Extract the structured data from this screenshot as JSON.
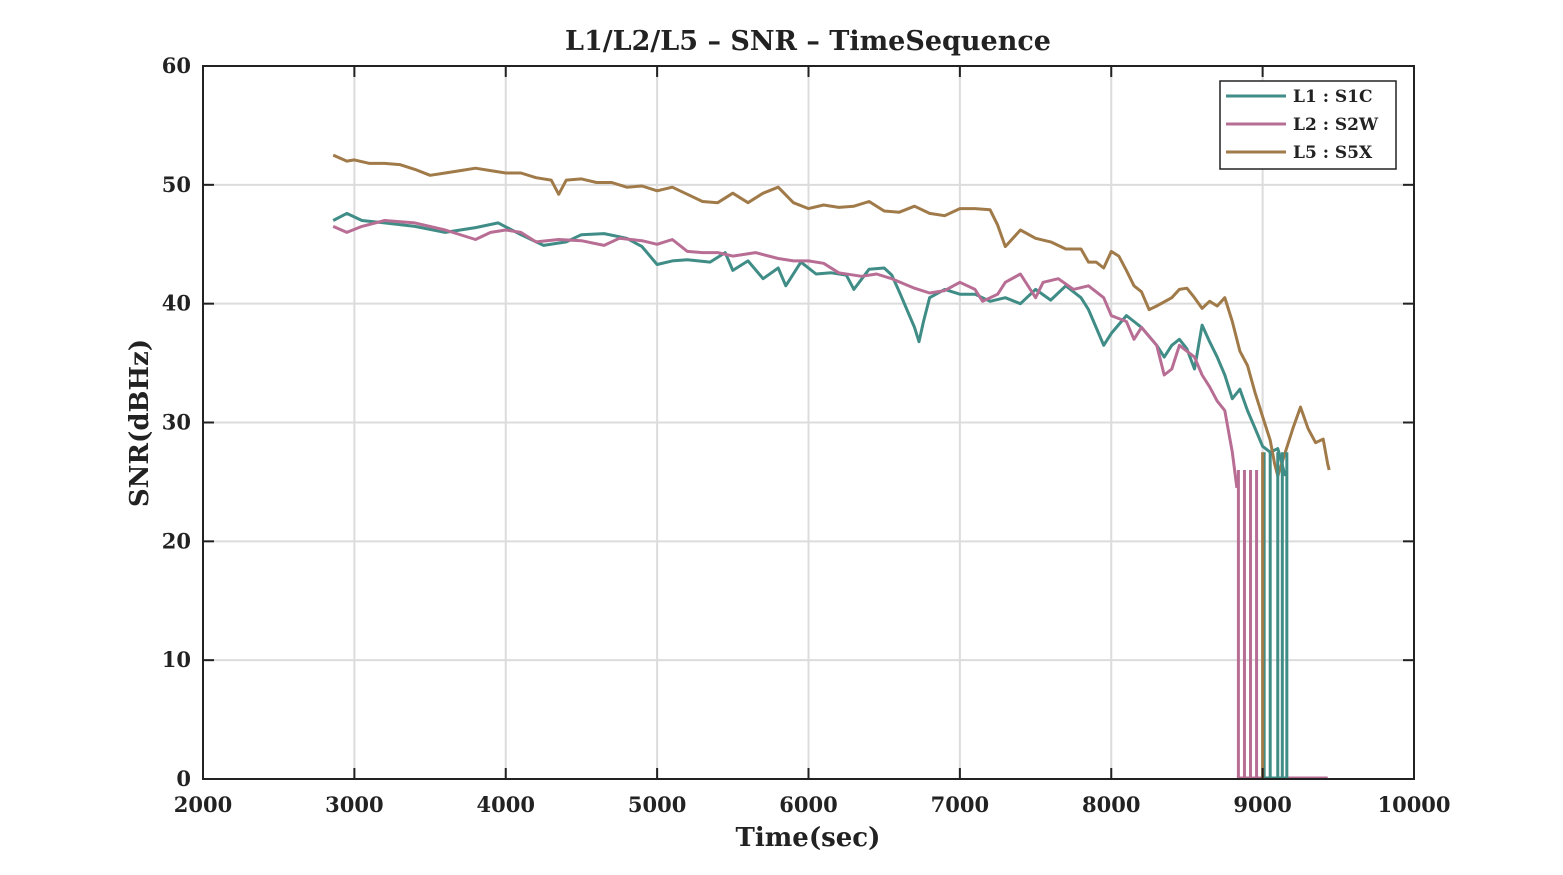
{
  "chart_data": {
    "type": "line",
    "title": "L1/L2/L5 – SNR – TimeSequence",
    "xlabel": "Time(sec)",
    "ylabel": "SNR(dBHz)",
    "xlim": [
      2000,
      10000
    ],
    "ylim": [
      0,
      60
    ],
    "xticks": [
      2000,
      3000,
      4000,
      5000,
      6000,
      7000,
      8000,
      9000,
      10000
    ],
    "yticks": [
      0,
      10,
      20,
      30,
      40,
      50,
      60
    ],
    "grid": true,
    "legend_position": "top-right",
    "series": [
      {
        "name": "L1 : S1C",
        "color": "#3f8d86",
        "points": [
          [
            2860,
            47
          ],
          [
            2950,
            47.6
          ],
          [
            3050,
            47
          ],
          [
            3200,
            46.8
          ],
          [
            3400,
            46.5
          ],
          [
            3600,
            46
          ],
          [
            3800,
            46.4
          ],
          [
            3950,
            46.8
          ],
          [
            4100,
            45.8
          ],
          [
            4250,
            44.9
          ],
          [
            4400,
            45.2
          ],
          [
            4500,
            45.8
          ],
          [
            4650,
            45.9
          ],
          [
            4800,
            45.5
          ],
          [
            4900,
            44.8
          ],
          [
            5000,
            43.3
          ],
          [
            5100,
            43.6
          ],
          [
            5200,
            43.7
          ],
          [
            5350,
            43.5
          ],
          [
            5450,
            44.3
          ],
          [
            5500,
            42.8
          ],
          [
            5600,
            43.6
          ],
          [
            5700,
            42.1
          ],
          [
            5800,
            43
          ],
          [
            5850,
            41.5
          ],
          [
            5950,
            43.5
          ],
          [
            6050,
            42.5
          ],
          [
            6150,
            42.6
          ],
          [
            6250,
            42.4
          ],
          [
            6300,
            41.2
          ],
          [
            6400,
            42.9
          ],
          [
            6500,
            43
          ],
          [
            6550,
            42.4
          ],
          [
            6600,
            41
          ],
          [
            6650,
            39.5
          ],
          [
            6700,
            38
          ],
          [
            6730,
            36.8
          ],
          [
            6760,
            38.5
          ],
          [
            6800,
            40.5
          ],
          [
            6900,
            41.2
          ],
          [
            7000,
            40.8
          ],
          [
            7100,
            40.8
          ],
          [
            7200,
            40.2
          ],
          [
            7300,
            40.5
          ],
          [
            7400,
            40
          ],
          [
            7500,
            41.2
          ],
          [
            7600,
            40.3
          ],
          [
            7700,
            41.5
          ],
          [
            7800,
            40.5
          ],
          [
            7850,
            39.5
          ],
          [
            7900,
            38
          ],
          [
            7950,
            36.5
          ],
          [
            8000,
            37.5
          ],
          [
            8100,
            39
          ],
          [
            8150,
            38.5
          ],
          [
            8200,
            38
          ],
          [
            8300,
            36.5
          ],
          [
            8350,
            35.5
          ],
          [
            8400,
            36.5
          ],
          [
            8450,
            37
          ],
          [
            8500,
            36.2
          ],
          [
            8550,
            34.5
          ],
          [
            8600,
            38.2
          ],
          [
            8650,
            36.8
          ],
          [
            8700,
            35.5
          ],
          [
            8750,
            34
          ],
          [
            8800,
            32
          ],
          [
            8850,
            32.8
          ],
          [
            8900,
            31
          ],
          [
            8950,
            29.5
          ],
          [
            9000,
            28
          ],
          [
            9050,
            27.5
          ],
          [
            9100,
            27.8
          ],
          [
            9150,
            25.5
          ]
        ]
      },
      {
        "name": "L2 : S2W",
        "color": "#b86e94",
        "points": [
          [
            2860,
            46.5
          ],
          [
            2950,
            46
          ],
          [
            3050,
            46.5
          ],
          [
            3200,
            47
          ],
          [
            3400,
            46.8
          ],
          [
            3600,
            46.2
          ],
          [
            3800,
            45.4
          ],
          [
            3900,
            46
          ],
          [
            4000,
            46.2
          ],
          [
            4100,
            46
          ],
          [
            4200,
            45.2
          ],
          [
            4350,
            45.4
          ],
          [
            4500,
            45.3
          ],
          [
            4650,
            44.9
          ],
          [
            4750,
            45.5
          ],
          [
            4900,
            45.3
          ],
          [
            5000,
            45
          ],
          [
            5100,
            45.4
          ],
          [
            5200,
            44.4
          ],
          [
            5300,
            44.3
          ],
          [
            5400,
            44.3
          ],
          [
            5500,
            44
          ],
          [
            5650,
            44.3
          ],
          [
            5800,
            43.8
          ],
          [
            5900,
            43.6
          ],
          [
            6000,
            43.6
          ],
          [
            6100,
            43.4
          ],
          [
            6200,
            42.6
          ],
          [
            6350,
            42.3
          ],
          [
            6450,
            42.5
          ],
          [
            6550,
            42.1
          ],
          [
            6700,
            41.3
          ],
          [
            6800,
            40.9
          ],
          [
            6900,
            41.1
          ],
          [
            7000,
            41.8
          ],
          [
            7100,
            41.2
          ],
          [
            7150,
            40.2
          ],
          [
            7250,
            40.8
          ],
          [
            7300,
            41.8
          ],
          [
            7400,
            42.5
          ],
          [
            7500,
            40.5
          ],
          [
            7550,
            41.8
          ],
          [
            7650,
            42.1
          ],
          [
            7750,
            41.2
          ],
          [
            7850,
            41.5
          ],
          [
            7950,
            40.5
          ],
          [
            8000,
            39
          ],
          [
            8100,
            38.5
          ],
          [
            8150,
            37
          ],
          [
            8200,
            38
          ],
          [
            8300,
            36.5
          ],
          [
            8350,
            34
          ],
          [
            8400,
            34.5
          ],
          [
            8450,
            36.5
          ],
          [
            8500,
            36
          ],
          [
            8550,
            35.5
          ],
          [
            8600,
            34
          ],
          [
            8650,
            33
          ],
          [
            8700,
            31.8
          ],
          [
            8750,
            31
          ],
          [
            8800,
            27.5
          ],
          [
            8830,
            24.5
          ]
        ]
      },
      {
        "name": "L5 : S5X",
        "color": "#a07a48",
        "points": [
          [
            2860,
            52.5
          ],
          [
            2950,
            52
          ],
          [
            3000,
            52.1
          ],
          [
            3100,
            51.8
          ],
          [
            3200,
            51.8
          ],
          [
            3300,
            51.7
          ],
          [
            3400,
            51.3
          ],
          [
            3500,
            50.8
          ],
          [
            3600,
            51
          ],
          [
            3700,
            51.2
          ],
          [
            3800,
            51.4
          ],
          [
            3900,
            51.2
          ],
          [
            4000,
            51
          ],
          [
            4100,
            51
          ],
          [
            4200,
            50.6
          ],
          [
            4300,
            50.4
          ],
          [
            4350,
            49.2
          ],
          [
            4400,
            50.4
          ],
          [
            4500,
            50.5
          ],
          [
            4600,
            50.2
          ],
          [
            4700,
            50.2
          ],
          [
            4800,
            49.8
          ],
          [
            4900,
            49.9
          ],
          [
            5000,
            49.5
          ],
          [
            5100,
            49.8
          ],
          [
            5200,
            49.2
          ],
          [
            5300,
            48.6
          ],
          [
            5400,
            48.5
          ],
          [
            5500,
            49.3
          ],
          [
            5600,
            48.5
          ],
          [
            5700,
            49.3
          ],
          [
            5800,
            49.8
          ],
          [
            5900,
            48.5
          ],
          [
            6000,
            48
          ],
          [
            6100,
            48.3
          ],
          [
            6200,
            48.1
          ],
          [
            6300,
            48.2
          ],
          [
            6400,
            48.6
          ],
          [
            6500,
            47.8
          ],
          [
            6600,
            47.7
          ],
          [
            6700,
            48.2
          ],
          [
            6800,
            47.6
          ],
          [
            6900,
            47.4
          ],
          [
            7000,
            48
          ],
          [
            7100,
            48
          ],
          [
            7200,
            47.9
          ],
          [
            7250,
            46.6
          ],
          [
            7300,
            44.8
          ],
          [
            7400,
            46.2
          ],
          [
            7500,
            45.5
          ],
          [
            7600,
            45.2
          ],
          [
            7700,
            44.6
          ],
          [
            7800,
            44.6
          ],
          [
            7850,
            43.5
          ],
          [
            7900,
            43.5
          ],
          [
            7950,
            43
          ],
          [
            8000,
            44.4
          ],
          [
            8050,
            44
          ],
          [
            8100,
            42.8
          ],
          [
            8150,
            41.5
          ],
          [
            8200,
            41
          ],
          [
            8250,
            39.5
          ],
          [
            8300,
            39.8
          ],
          [
            8400,
            40.5
          ],
          [
            8450,
            41.2
          ],
          [
            8500,
            41.3
          ],
          [
            8550,
            40.5
          ],
          [
            8600,
            39.6
          ],
          [
            8650,
            40.2
          ],
          [
            8700,
            39.8
          ],
          [
            8750,
            40.5
          ],
          [
            8800,
            38.5
          ],
          [
            8850,
            36
          ],
          [
            8900,
            34.8
          ],
          [
            8950,
            32.5
          ],
          [
            9000,
            30.5
          ],
          [
            9050,
            28.5
          ],
          [
            9080,
            26.5
          ],
          [
            9100,
            25.5
          ],
          [
            9150,
            27.5
          ],
          [
            9200,
            29.5
          ],
          [
            9250,
            31.3
          ],
          [
            9300,
            29.5
          ],
          [
            9350,
            28.3
          ],
          [
            9400,
            28.6
          ],
          [
            9430,
            26.5
          ],
          [
            9440,
            26
          ]
        ]
      }
    ],
    "dropout_spikes": [
      {
        "series": "L2 : S2W",
        "top": 26,
        "x": [
          8840,
          8880,
          8920,
          8960
        ]
      },
      {
        "series": "L1 : S1C",
        "top": 27.5,
        "x": [
          9010,
          9050,
          9100,
          9130,
          9160
        ]
      },
      {
        "series": "L5 : S5X",
        "top": 27.5,
        "x": [
          9000
        ]
      }
    ],
    "zero_segments": [
      {
        "series": "L2 : S2W",
        "x": [
          8830,
          9430
        ]
      },
      {
        "series": "L1 : S1C",
        "x": [
          9000,
          9170
        ]
      }
    ]
  }
}
